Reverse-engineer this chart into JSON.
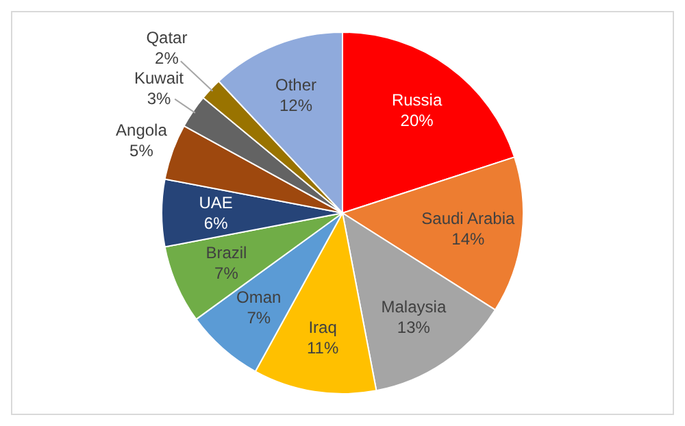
{
  "chart_data": {
    "type": "pie",
    "categories": [
      "Russia",
      "Saudi Arabia",
      "Malaysia",
      "Iraq",
      "Oman",
      "Brazil",
      "UAE",
      "Angola",
      "Kuwait",
      "Qatar",
      "Other"
    ],
    "values": [
      20,
      14,
      13,
      11,
      7,
      7,
      6,
      5,
      3,
      2,
      12
    ],
    "colors": [
      "#ff0000",
      "#ed7d31",
      "#a5a5a5",
      "#ffc000",
      "#5b9bd5",
      "#70ad47",
      "#264478",
      "#9e480e",
      "#636363",
      "#997300",
      "#8faadc"
    ],
    "value_labels": [
      "20%",
      "14%",
      "13%",
      "11%",
      "7%",
      "7%",
      "6%",
      "5%",
      "3%",
      "2%",
      "12%"
    ],
    "legend": false
  }
}
